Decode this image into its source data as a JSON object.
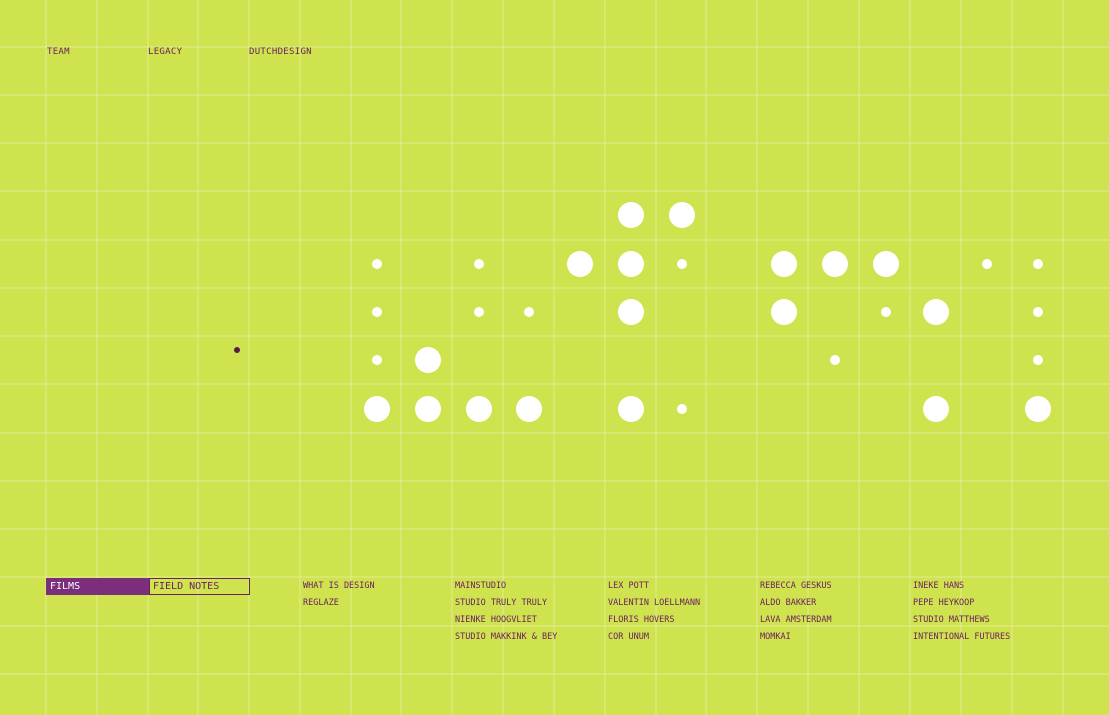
{
  "nav": {
    "team": "TEAM",
    "legacy": "LEGACY",
    "dutchdesign": "DUTCHDESIGN"
  },
  "buttons": {
    "films": "FILMS",
    "field_notes": "FIELD NOTES"
  },
  "columns": [
    [
      "WHAT IS DESIGN",
      "REGLAZE"
    ],
    [
      "MAINSTUDIO",
      "STUDIO TRULY TRULY",
      "NIENKE HOOGVLIET",
      "STUDIO MAKKINK & BEY"
    ],
    [
      "LEX POTT",
      "VALENTIN LOELLMANN",
      "FLORIS HOVERS",
      "COR UNUM"
    ],
    [
      "REBECCA GESKUS",
      "ALDO BAKKER",
      "LAVA AMSTERDAM",
      "MOMKAI"
    ],
    [
      "INEKE HANS",
      "PEPE HEYKOOP",
      "STUDIO MATTHEWS",
      "INTENTIONAL FUTURES"
    ]
  ],
  "colors": {
    "background": "#cfe34f",
    "accent": "#7a2e7c",
    "text": "#6b2060",
    "dot": "#ffffff"
  }
}
